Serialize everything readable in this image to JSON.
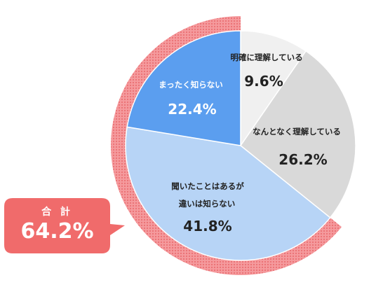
{
  "chart_data": {
    "type": "pie",
    "title": "",
    "start": "12 o'clock",
    "direction": "clockwise",
    "slices": [
      {
        "label": "明確に理解している",
        "value": 9.6,
        "value_label": "9.6%",
        "color": "#f0f0f0"
      },
      {
        "label": "なんとなく理解している",
        "value": 26.2,
        "value_label": "26.2%",
        "color": "#d9d9d9"
      },
      {
        "label": "聞いたことはあるが\n違いは知らない",
        "value": 41.8,
        "value_label": "41.8%",
        "color": "#b7d4f6"
      },
      {
        "label": "まったく知らない",
        "value": 22.4,
        "value_label": "22.4%",
        "color": "#5b9eef"
      }
    ],
    "highlight": {
      "slices": [
        "聞いたことはあるが\n違いは知らない",
        "まったく知らない"
      ],
      "ring_color": "#f07c80",
      "label": "合 計",
      "value": 64.2,
      "value_label": "64.2%",
      "callout_color": "#f06b6b"
    }
  }
}
